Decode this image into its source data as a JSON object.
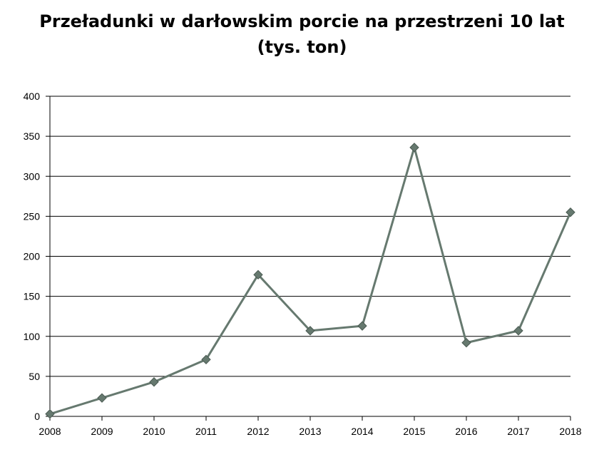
{
  "chart_data": {
    "type": "line",
    "title_line1": "Przeładunki w darłowskim porcie na przestrzeni 10 lat",
    "title_line2": "(tys. ton)",
    "xlabel": "",
    "ylabel": "",
    "x": [
      "2008",
      "2009",
      "2010",
      "2011",
      "2012",
      "2013",
      "2014",
      "2015",
      "2016",
      "2017",
      "2018"
    ],
    "series": [
      {
        "values": [
          3,
          23,
          43,
          71,
          177,
          107,
          113,
          336,
          92,
          107,
          255
        ]
      }
    ],
    "ylim": [
      0,
      400
    ],
    "yticks": [
      0,
      50,
      100,
      150,
      200,
      250,
      300,
      350,
      400
    ],
    "grid": true,
    "legend": "none",
    "line_color": "#66796f",
    "marker_color": "#66796f",
    "marker": "diamond"
  }
}
